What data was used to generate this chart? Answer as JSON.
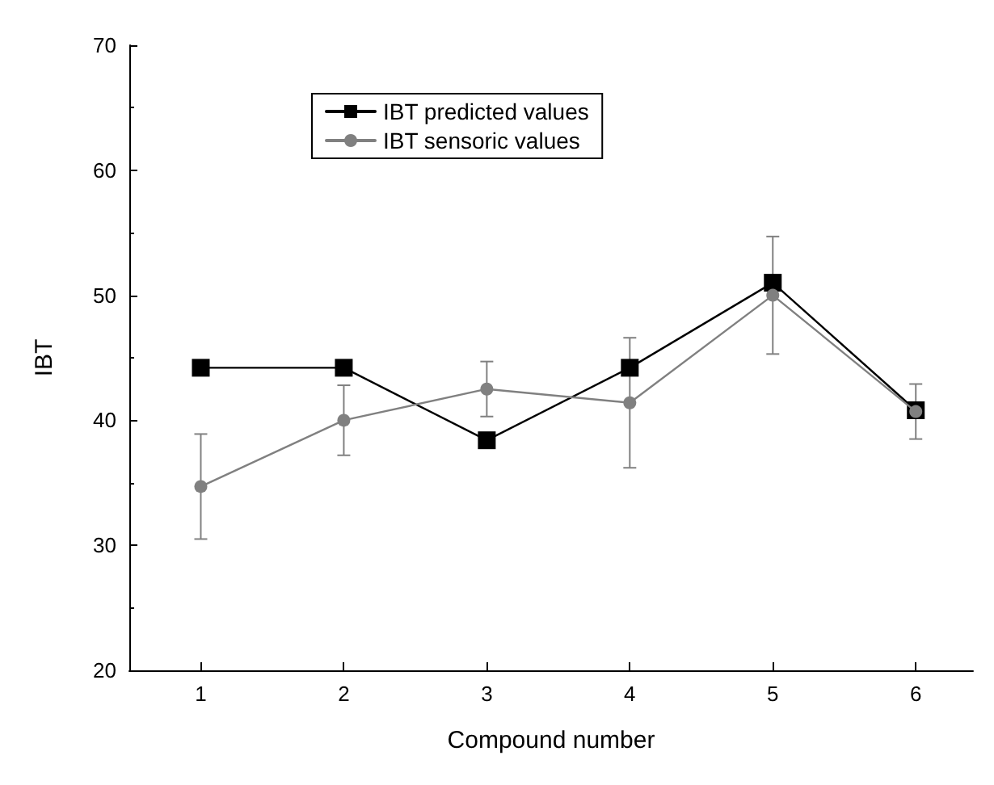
{
  "chart_data": {
    "type": "line",
    "xlabel": "Compound number",
    "ylabel": "IBT",
    "x": [
      1,
      2,
      3,
      4,
      5,
      6
    ],
    "xlim": [
      0.5,
      6.4
    ],
    "xticks": [
      1,
      2,
      3,
      4,
      5,
      6
    ],
    "ylim": [
      20,
      70
    ],
    "yticks": [
      20,
      30,
      40,
      50,
      60,
      70
    ],
    "series": [
      {
        "name": "IBT predicted values",
        "color": "#000000",
        "marker": "square",
        "values": [
          44.2,
          44.2,
          38.4,
          44.2,
          51.0,
          40.8
        ]
      },
      {
        "name": "IBT sensoric values",
        "color": "#808080",
        "marker": "circle",
        "values": [
          34.7,
          40.0,
          42.5,
          41.4,
          50.0,
          40.7
        ],
        "errors": [
          4.2,
          2.8,
          2.2,
          5.2,
          4.7,
          2.2
        ]
      }
    ],
    "legend": "top left",
    "grid": false,
    "line_style": "solid"
  }
}
